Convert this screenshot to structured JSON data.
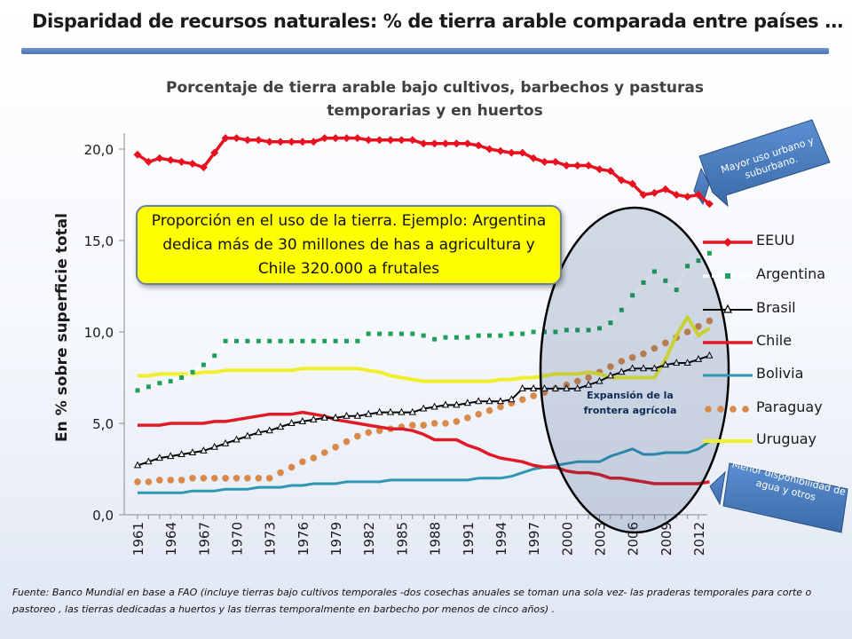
{
  "slide": {
    "title": "Disparidad de recursos naturales: % de tierra arable comparada entre países …",
    "source_note": "Fuente: Banco Mundial en base a FAO (incluye tierras bajo cultivos temporales -dos cosechas anuales se toman una sola vez- las praderas temporales para corte o pastoreo , las tierras dedicadas a huertos y las tierras temporalmente en barbecho por menos de cinco años) ."
  },
  "annotations": {
    "info_box": "Proporción en el uso de la tierra. Ejemplo: Argentina dedica más de 30 millones de has a agricultura y Chile 320.000 a frutales",
    "callout_top": "Mayor uso urbano y suburbano.",
    "callout_bottom": "Menor disponibilidad de agua y otros",
    "expansion_label": "Expansión de la frontera agrícola"
  },
  "colors": {
    "EEUU": "#e8111f",
    "Argentina": "#cfe6f5",
    "Brasil": "#000000",
    "Chile": "#e01a27",
    "Bolivia": "#2f96b4",
    "Paraguay": "#d9894a",
    "Uruguay": "#f0f02a",
    "callout": "#4a7bbf",
    "info_box": "#ffff00"
  },
  "chart_data": {
    "type": "line",
    "title": "Porcentaje de tierra arable bajo cultivos, barbechos  y pasturas temporarias y en huertos",
    "xlabel": "",
    "ylabel": "En % sobre superficie total",
    "ylim": [
      0,
      20
    ],
    "yticks": [
      "0,0",
      "5,0",
      "10,0",
      "15,0",
      "20,0"
    ],
    "xticks": [
      "1961",
      "1964",
      "1967",
      "1970",
      "1973",
      "1976",
      "1979",
      "1982",
      "1985",
      "1988",
      "1991",
      "1994",
      "1997",
      "2000",
      "2003",
      "2006",
      "2009",
      "2012"
    ],
    "x_start": 1961,
    "x_end": 2012,
    "grid": false,
    "legend_position": "right",
    "series": [
      {
        "name": "EEUU",
        "values": [
          19.7,
          19.3,
          19.5,
          19.4,
          19.3,
          19.2,
          19.0,
          19.8,
          20.6,
          20.6,
          20.5,
          20.5,
          20.4,
          20.4,
          20.4,
          20.4,
          20.4,
          20.6,
          20.6,
          20.6,
          20.6,
          20.5,
          20.5,
          20.5,
          20.5,
          20.5,
          20.3,
          20.3,
          20.3,
          20.3,
          20.3,
          20.2,
          20.0,
          19.9,
          19.8,
          19.8,
          19.5,
          19.3,
          19.3,
          19.1,
          19.1,
          19.1,
          18.9,
          18.8,
          18.3,
          18.1,
          17.5,
          17.6,
          17.8,
          17.5,
          17.4,
          17.5,
          17.0
        ]
      },
      {
        "name": "Argentina",
        "values": [
          6.8,
          7.0,
          7.2,
          7.3,
          7.5,
          7.8,
          8.2,
          8.7,
          9.5,
          9.5,
          9.5,
          9.5,
          9.5,
          9.5,
          9.5,
          9.5,
          9.5,
          9.5,
          9.5,
          9.5,
          9.5,
          9.9,
          9.9,
          9.9,
          9.9,
          9.9,
          9.8,
          9.6,
          9.7,
          9.7,
          9.7,
          9.8,
          9.8,
          9.8,
          9.9,
          9.9,
          10.0,
          10.0,
          10.0,
          10.1,
          10.1,
          10.1,
          10.2,
          10.5,
          11.2,
          12.0,
          12.7,
          13.3,
          12.8,
          12.3,
          13.6,
          13.9,
          14.3
        ]
      },
      {
        "name": "Brasil",
        "values": [
          2.7,
          2.9,
          3.1,
          3.2,
          3.3,
          3.4,
          3.5,
          3.7,
          3.9,
          4.1,
          4.3,
          4.5,
          4.6,
          4.8,
          5.0,
          5.1,
          5.2,
          5.3,
          5.3,
          5.4,
          5.4,
          5.5,
          5.6,
          5.6,
          5.6,
          5.6,
          5.8,
          5.9,
          6.0,
          6.0,
          6.1,
          6.2,
          6.2,
          6.2,
          6.3,
          6.9,
          6.9,
          6.9,
          6.9,
          6.9,
          6.9,
          7.1,
          7.3,
          7.6,
          7.8,
          8.0,
          8.0,
          8.0,
          8.2,
          8.3,
          8.3,
          8.5,
          8.7
        ]
      },
      {
        "name": "Chile",
        "values": [
          4.9,
          4.9,
          4.9,
          5.0,
          5.0,
          5.0,
          5.0,
          5.1,
          5.1,
          5.2,
          5.3,
          5.4,
          5.5,
          5.5,
          5.5,
          5.6,
          5.5,
          5.4,
          5.2,
          5.1,
          5.0,
          4.9,
          4.8,
          4.7,
          4.7,
          4.6,
          4.4,
          4.1,
          4.1,
          4.1,
          3.8,
          3.6,
          3.3,
          3.1,
          3.0,
          2.9,
          2.7,
          2.6,
          2.6,
          2.4,
          2.3,
          2.3,
          2.2,
          2.0,
          2.0,
          1.9,
          1.8,
          1.7,
          1.7,
          1.7,
          1.7,
          1.7,
          1.8
        ]
      },
      {
        "name": "Bolivia",
        "values": [
          1.2,
          1.2,
          1.2,
          1.2,
          1.2,
          1.3,
          1.3,
          1.3,
          1.4,
          1.4,
          1.4,
          1.5,
          1.5,
          1.5,
          1.6,
          1.6,
          1.7,
          1.7,
          1.7,
          1.8,
          1.8,
          1.8,
          1.8,
          1.9,
          1.9,
          1.9,
          1.9,
          1.9,
          1.9,
          1.9,
          1.9,
          2.0,
          2.0,
          2.0,
          2.1,
          2.3,
          2.5,
          2.6,
          2.7,
          2.8,
          2.9,
          2.9,
          2.9,
          3.2,
          3.4,
          3.6,
          3.3,
          3.3,
          3.4,
          3.4,
          3.4,
          3.6,
          4.0
        ]
      },
      {
        "name": "Paraguay",
        "values": [
          1.8,
          1.8,
          1.9,
          1.9,
          1.9,
          2.0,
          2.0,
          2.0,
          2.0,
          2.0,
          2.0,
          2.0,
          2.0,
          2.3,
          2.6,
          2.9,
          3.1,
          3.4,
          3.7,
          4.0,
          4.3,
          4.5,
          4.6,
          4.7,
          4.8,
          4.9,
          4.9,
          5.0,
          5.0,
          5.1,
          5.3,
          5.5,
          5.7,
          5.9,
          6.1,
          6.3,
          6.5,
          6.7,
          6.9,
          7.1,
          7.3,
          7.5,
          7.8,
          8.1,
          8.4,
          8.6,
          8.8,
          9.1,
          9.4,
          9.7,
          10.0,
          10.3,
          10.6
        ]
      },
      {
        "name": "Uruguay",
        "values": [
          7.6,
          7.6,
          7.7,
          7.7,
          7.7,
          7.7,
          7.8,
          7.8,
          7.9,
          7.9,
          7.9,
          7.9,
          7.9,
          7.9,
          7.9,
          8.0,
          8.0,
          8.0,
          8.0,
          8.0,
          8.0,
          7.9,
          7.8,
          7.6,
          7.5,
          7.4,
          7.3,
          7.3,
          7.3,
          7.3,
          7.3,
          7.3,
          7.3,
          7.4,
          7.4,
          7.5,
          7.5,
          7.6,
          7.7,
          7.7,
          7.7,
          7.8,
          7.7,
          7.5,
          7.5,
          7.5,
          7.5,
          7.5,
          8.5,
          9.8,
          10.8,
          9.8,
          10.2
        ]
      }
    ]
  }
}
